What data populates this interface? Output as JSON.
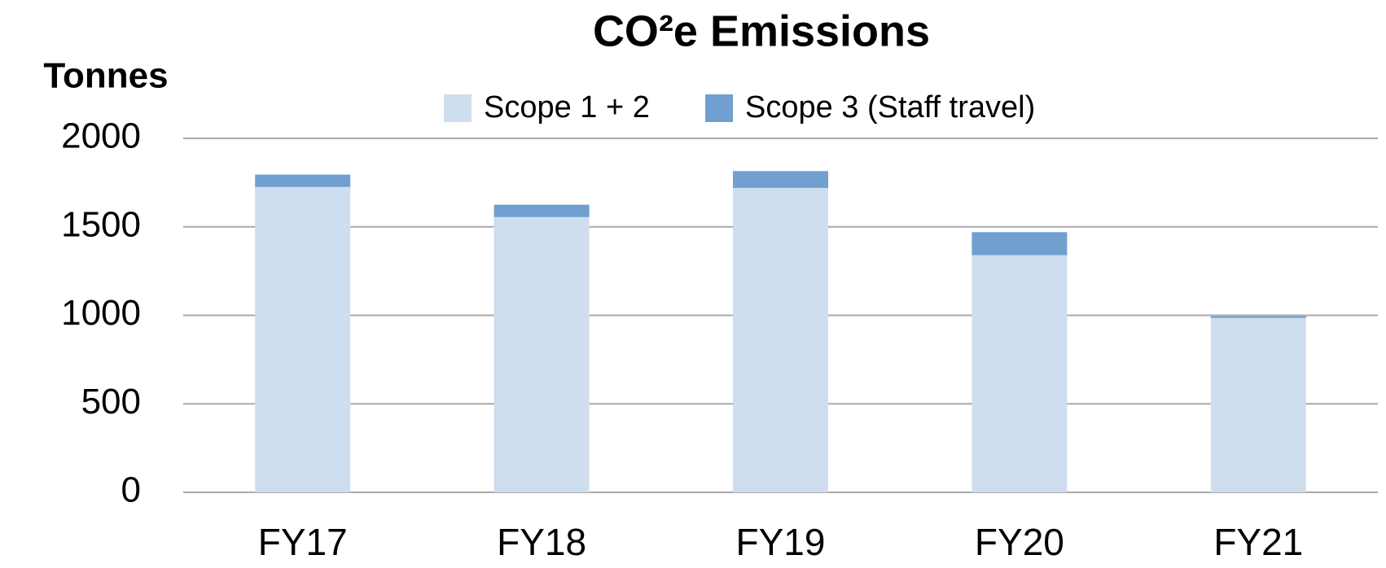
{
  "chart_data": {
    "type": "stacked_bar",
    "title": "CO²e Emissions",
    "y_label": "Tonnes",
    "categories": [
      "FY17",
      "FY18",
      "FY19",
      "FY20",
      "FY21"
    ],
    "series": [
      {
        "name": "Scope 1 + 2",
        "color": "#cfdeee",
        "values": [
          1725,
          1555,
          1720,
          1340,
          985
        ]
      },
      {
        "name": "Scope 3 (Staff travel)",
        "color": "#709fd0",
        "values": [
          70,
          70,
          95,
          130,
          10
        ]
      }
    ],
    "ylim": [
      0,
      2000
    ],
    "yticks": [
      0,
      500,
      1000,
      1500,
      2000
    ],
    "grid": true,
    "legend": "top"
  }
}
